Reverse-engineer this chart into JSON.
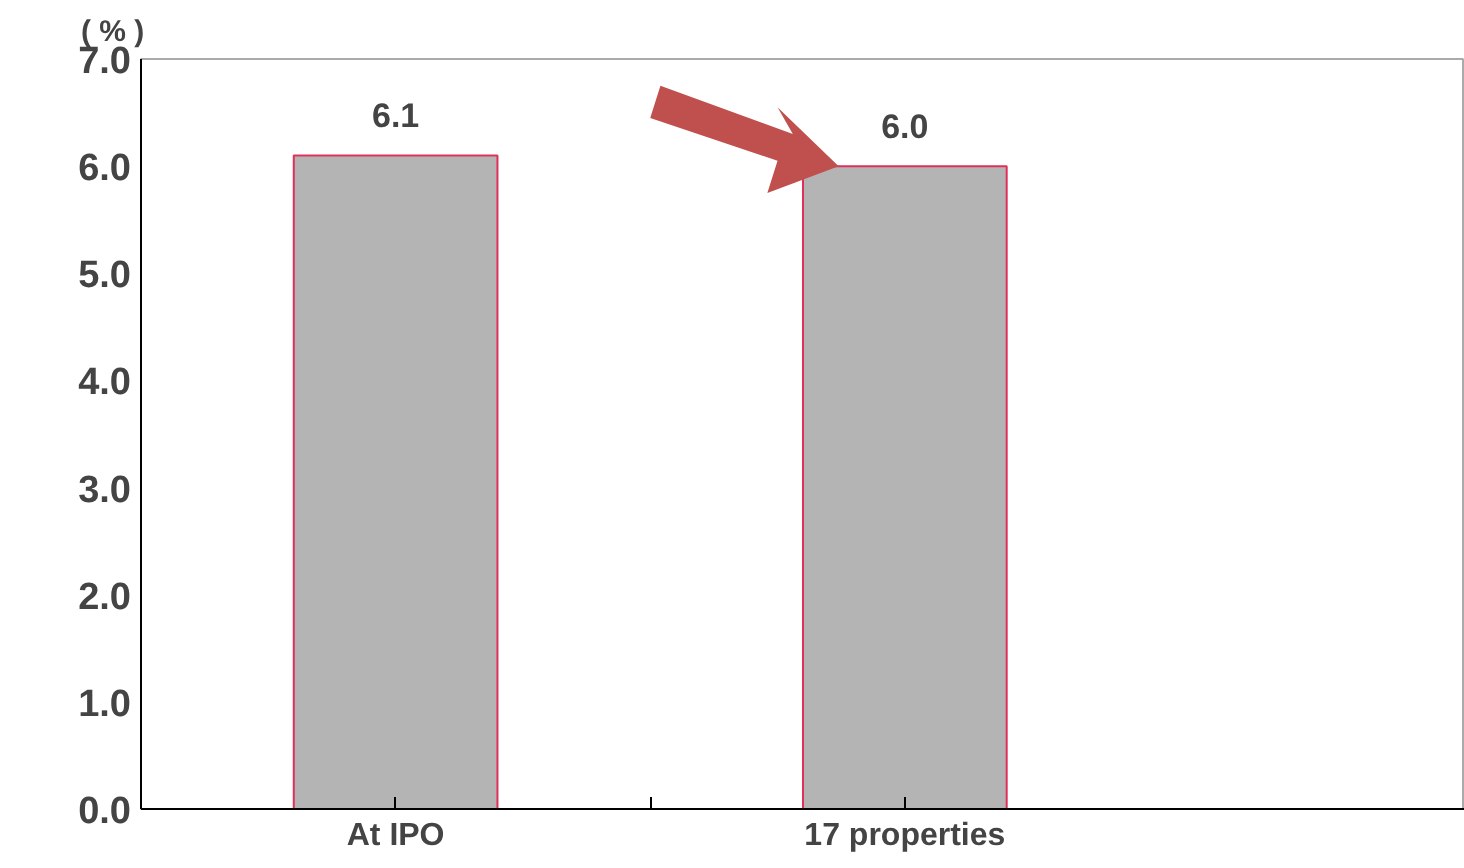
{
  "chart_data": {
    "type": "bar",
    "ylabel": "( % )",
    "categories": [
      "At IPO",
      "17 properties"
    ],
    "values": [
      6.1,
      6.0
    ],
    "color": "#b4b4b4",
    "ylim": [
      0,
      7
    ],
    "yticks": [
      {
        "value": 0,
        "label": "0.0"
      },
      {
        "value": 1,
        "label": "1.0"
      },
      {
        "value": 2,
        "label": "2.0"
      },
      {
        "value": 3,
        "label": "3.0"
      },
      {
        "value": 4,
        "label": "4.0"
      },
      {
        "value": 5,
        "label": "5.0"
      },
      {
        "value": 6,
        "label": "6.0"
      },
      {
        "value": 7,
        "label": "7.0"
      }
    ],
    "value_labels": [
      "6.1",
      "6.0"
    ],
    "grid": false
  }
}
